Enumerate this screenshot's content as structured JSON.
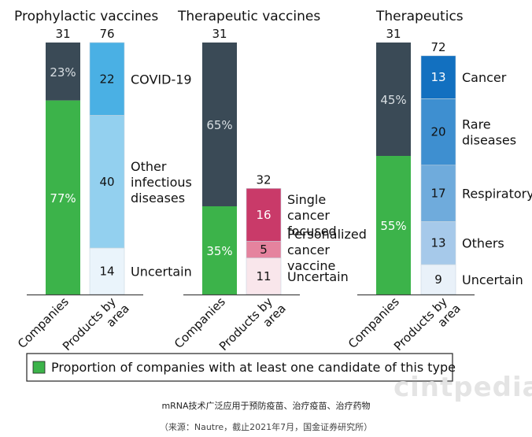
{
  "chart_data": [
    {
      "type": "bar",
      "title": "Prophylactic vaccines",
      "companies": {
        "label": "Companies",
        "total": 31,
        "segments": [
          {
            "value": 23,
            "text": "23%",
            "kind": "other"
          },
          {
            "value": 77,
            "text": "77%",
            "kind": "with"
          }
        ]
      },
      "products": {
        "label": "Products by area",
        "total": 76,
        "segments": [
          {
            "value": 22,
            "label": "COVID-19",
            "color": "#4ab0e4"
          },
          {
            "value": 40,
            "label": "Other infectious diseases",
            "color": "#93d0ef"
          },
          {
            "value": 14,
            "label": "Uncertain",
            "color": "#eaf4fb"
          }
        ]
      }
    },
    {
      "type": "bar",
      "title": "Therapeutic vaccines",
      "companies": {
        "label": "Companies",
        "total": 31,
        "segments": [
          {
            "value": 65,
            "text": "65%",
            "kind": "other"
          },
          {
            "value": 35,
            "text": "35%",
            "kind": "with"
          }
        ]
      },
      "products": {
        "label": "Products by area",
        "total": 32,
        "segments": [
          {
            "value": 16,
            "label": "Single cancer focused",
            "color": "#c93a69"
          },
          {
            "value": 5,
            "label": "Personalized cancer vaccine",
            "color": "#e5839e"
          },
          {
            "value": 11,
            "label": "Uncertain",
            "color": "#f9e6eb"
          }
        ]
      }
    },
    {
      "type": "bar",
      "title": "Therapeutics",
      "companies": {
        "label": "Companies",
        "total": 31,
        "segments": [
          {
            "value": 45,
            "text": "45%",
            "kind": "other"
          },
          {
            "value": 55,
            "text": "55%",
            "kind": "with"
          }
        ]
      },
      "products": {
        "label": "Products by area",
        "total": 72,
        "segments": [
          {
            "value": 13,
            "label": "Cancer",
            "color": "#1270c0"
          },
          {
            "value": 20,
            "label": "Rare diseases",
            "color": "#3e8fd0"
          },
          {
            "value": 17,
            "label": "Respiratory",
            "color": "#6fabdc"
          },
          {
            "value": 13,
            "label": "Others",
            "color": "#a6c9ea"
          },
          {
            "value": 9,
            "label": "Uncertain",
            "color": "#e9f1f9"
          }
        ]
      }
    }
  ],
  "legend": {
    "text": "Proportion of companies with at least one candidate of this type",
    "color": "#3cb34a"
  },
  "colors": {
    "companies_other": "#3a4a56",
    "companies_with": "#3cb34a"
  },
  "caption": {
    "line1": "mRNA技术广泛应用于预防疫苗、治疗疫苗、治疗药物",
    "line2": "（来源：Nautre，截止2021年7月，国金证券研究所）"
  },
  "watermark": "cintpedia"
}
